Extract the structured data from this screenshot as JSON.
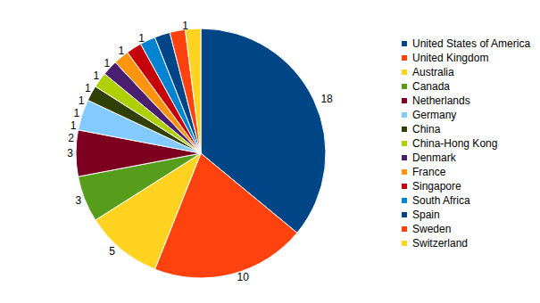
{
  "chart_data": {
    "type": "pie",
    "categories": [
      "United States of America",
      "United Kingdom",
      "Australia",
      "Canada",
      "Netherlands",
      "Germany",
      "China",
      "China-Hong Kong",
      "Denmark",
      "France",
      "Singapore",
      "South Africa",
      "Spain",
      "Sweden",
      "Switzerland"
    ],
    "values": [
      18,
      10,
      5,
      3,
      3,
      2,
      1,
      1,
      1,
      1,
      1,
      1,
      1,
      1,
      1
    ],
    "colors": [
      "#004586",
      "#ff420e",
      "#ffd320",
      "#579d1c",
      "#7e0021",
      "#83caff",
      "#314004",
      "#aecf00",
      "#4b1f6f",
      "#ff950e",
      "#c5000b",
      "#0084d1",
      "#004586",
      "#ff420e",
      "#ffd320"
    ],
    "data_labels": true,
    "legend": "right"
  }
}
